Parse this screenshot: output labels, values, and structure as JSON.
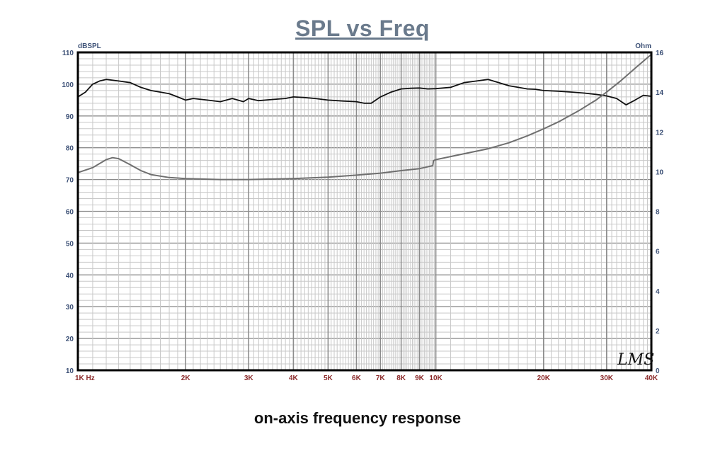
{
  "title": "SPL vs Freq",
  "caption": "on-axis frequency response",
  "watermark": "LMS",
  "colors": {
    "title": "#6a7a8c",
    "y_tick": "#3b4f75",
    "x_tick": "#8b2a2a",
    "grid_major": "#8c8c8c",
    "grid_minor": "#c8c8c8",
    "spl_curve": "#111111",
    "impedance_curve": "#6f6f6f"
  },
  "chart_data": {
    "type": "line",
    "xscale": "log",
    "xlim": [
      1000,
      40000
    ],
    "ylabel": "dBSPL",
    "ylim": [
      10,
      110
    ],
    "y2label": "Ohm",
    "y2lim": [
      0,
      16
    ],
    "grid": true,
    "x_ticks": [
      {
        "value": 1000,
        "label": "1K Hz"
      },
      {
        "value": 2000,
        "label": "2K"
      },
      {
        "value": 3000,
        "label": "3K"
      },
      {
        "value": 4000,
        "label": "4K"
      },
      {
        "value": 5000,
        "label": "5K"
      },
      {
        "value": 6000,
        "label": "6K"
      },
      {
        "value": 7000,
        "label": "7K"
      },
      {
        "value": 8000,
        "label": "8K"
      },
      {
        "value": 9000,
        "label": "9K"
      },
      {
        "value": 10000,
        "label": "10K"
      },
      {
        "value": 20000,
        "label": "20K"
      },
      {
        "value": 30000,
        "label": "30K"
      },
      {
        "value": 40000,
        "label": "40K"
      }
    ],
    "y_ticks": [
      "10",
      "20",
      "30",
      "40",
      "50",
      "60",
      "70",
      "80",
      "90",
      "100",
      "110"
    ],
    "y2_ticks": [
      "0",
      "2",
      "4",
      "6",
      "8",
      "10",
      "12",
      "14",
      "16"
    ],
    "series": [
      {
        "axis": "left",
        "x": [
          1000,
          1050,
          1100,
          1150,
          1200,
          1300,
          1400,
          1500,
          1600,
          1700,
          1800,
          1900,
          2000,
          2100,
          2300,
          2500,
          2700,
          2900,
          3000,
          3200,
          3500,
          3800,
          4000,
          4300,
          4600,
          5000,
          5500,
          6000,
          6300,
          6600,
          7000,
          7500,
          8000,
          8500,
          9000,
          9500,
          10000,
          11000,
          12000,
          13000,
          14000,
          15000,
          16000,
          17000,
          18000,
          19000,
          20000,
          22000,
          24000,
          26000,
          28000,
          30000,
          32000,
          34000,
          36000,
          38000,
          40000
        ],
        "y": [
          96,
          97.5,
          100,
          101,
          101.5,
          101,
          100.5,
          99,
          98,
          97.5,
          97,
          96,
          95,
          95.5,
          95,
          94.5,
          95.5,
          94.5,
          95.5,
          94.8,
          95.2,
          95.5,
          96,
          95.8,
          95.5,
          95,
          94.7,
          94.5,
          94,
          94,
          96,
          97.5,
          98.5,
          98.7,
          98.8,
          98.5,
          98.6,
          99,
          100.5,
          101,
          101.5,
          100.5,
          99.5,
          99,
          98.5,
          98.4,
          98,
          97.8,
          97.5,
          97.2,
          96.8,
          96.3,
          95.5,
          93.5,
          95,
          96.5,
          96.2
        ]
      },
      {
        "axis": "right",
        "x": [
          1000,
          1100,
          1200,
          1250,
          1300,
          1400,
          1500,
          1600,
          1800,
          2000,
          2500,
          3000,
          4000,
          5000,
          6000,
          7000,
          8000,
          9000,
          9800,
          9850,
          10000,
          12000,
          14000,
          16000,
          18000,
          20000,
          22000,
          25000,
          28000,
          30000,
          33000,
          36000,
          40000
        ],
        "y": [
          9.95,
          10.2,
          10.6,
          10.7,
          10.65,
          10.35,
          10.05,
          9.85,
          9.7,
          9.65,
          9.6,
          9.6,
          9.65,
          9.72,
          9.82,
          9.92,
          10.05,
          10.15,
          10.3,
          10.55,
          10.6,
          10.9,
          11.15,
          11.45,
          11.8,
          12.15,
          12.5,
          13.05,
          13.6,
          14,
          14.6,
          15.2,
          15.9
        ]
      }
    ]
  }
}
